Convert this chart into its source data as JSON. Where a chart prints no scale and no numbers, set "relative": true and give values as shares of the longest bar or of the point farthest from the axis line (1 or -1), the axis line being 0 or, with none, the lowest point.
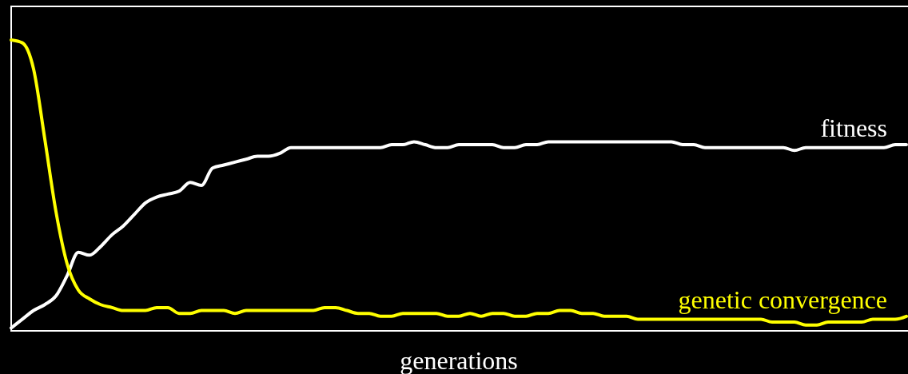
{
  "chart_data": {
    "type": "line",
    "relative": true,
    "xlabel": "generations",
    "marker": "none",
    "line_style": "solid",
    "categories": [
      null,
      null,
      null,
      null,
      null,
      null,
      null,
      null,
      null,
      null,
      null,
      null,
      null,
      null,
      null,
      null,
      null,
      null,
      null,
      null,
      null,
      null,
      null,
      null,
      null,
      null,
      null,
      null,
      null,
      null,
      null,
      null,
      null,
      null,
      null,
      null,
      null,
      null,
      null,
      null,
      null,
      null,
      null,
      null,
      null,
      null,
      null,
      null,
      null,
      null,
      null,
      null,
      null,
      null,
      null,
      null,
      null,
      null,
      null,
      null,
      null,
      null,
      null,
      null,
      null,
      null,
      null,
      null,
      null,
      null,
      null,
      null,
      null,
      null,
      null,
      null,
      null,
      null,
      null,
      null,
      null
    ],
    "series": [
      {
        "name": "fitness",
        "color": "#ffffff",
        "values": [
          0.01,
          0.04,
          0.07,
          0.09,
          0.12,
          0.19,
          0.27,
          0.26,
          0.29,
          0.33,
          0.36,
          0.4,
          0.44,
          0.46,
          0.47,
          0.48,
          0.51,
          0.5,
          0.56,
          0.57,
          0.58,
          0.59,
          0.6,
          0.6,
          0.61,
          0.63,
          0.63,
          0.63,
          0.63,
          0.63,
          0.63,
          0.63,
          0.63,
          0.63,
          0.64,
          0.64,
          0.65,
          0.64,
          0.63,
          0.63,
          0.64,
          0.64,
          0.64,
          0.64,
          0.63,
          0.63,
          0.64,
          0.64,
          0.65,
          0.65,
          0.65,
          0.65,
          0.65,
          0.65,
          0.65,
          0.65,
          0.65,
          0.65,
          0.65,
          0.65,
          0.64,
          0.64,
          0.63,
          0.63,
          0.63,
          0.63,
          0.63,
          0.63,
          0.63,
          0.63,
          0.62,
          0.63,
          0.63,
          0.63,
          0.63,
          0.63,
          0.63,
          0.63,
          0.63,
          0.64,
          0.64
        ]
      },
      {
        "name": "genetic convergence",
        "color": "#ffff00",
        "values": [
          1,
          0.99,
          0.9,
          0.66,
          0.41,
          0.23,
          0.14,
          0.11,
          0.09,
          0.08,
          0.07,
          0.07,
          0.07,
          0.08,
          0.08,
          0.06,
          0.06,
          0.07,
          0.07,
          0.07,
          0.06,
          0.07,
          0.07,
          0.07,
          0.07,
          0.07,
          0.07,
          0.07,
          0.08,
          0.08,
          0.07,
          0.06,
          0.06,
          0.05,
          0.05,
          0.06,
          0.06,
          0.06,
          0.06,
          0.05,
          0.05,
          0.06,
          0.05,
          0.06,
          0.06,
          0.05,
          0.05,
          0.06,
          0.06,
          0.07,
          0.07,
          0.06,
          0.06,
          0.05,
          0.05,
          0.05,
          0.04,
          0.04,
          0.04,
          0.04,
          0.04,
          0.04,
          0.04,
          0.04,
          0.04,
          0.04,
          0.04,
          0.04,
          0.03,
          0.03,
          0.03,
          0.02,
          0.02,
          0.03,
          0.03,
          0.03,
          0.03,
          0.04,
          0.04,
          0.04,
          0.05
        ]
      }
    ]
  }
}
